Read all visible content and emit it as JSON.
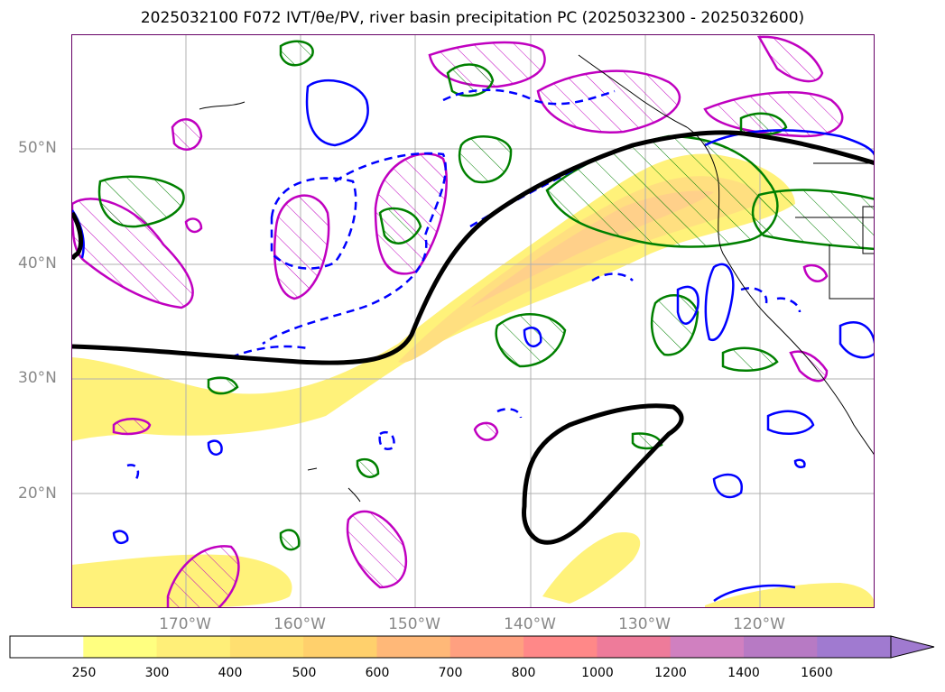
{
  "title_text": "2025032100 F072 IVT/θe/PV, river basin precipitation PC (2025032300 - 2025032600)",
  "map": {
    "lat_labels": [
      "50°N",
      "40°N",
      "30°N",
      "20°N"
    ],
    "lon_labels": [
      "170°W",
      "160°W",
      "150°W",
      "140°W",
      "130°W",
      "120°W"
    ],
    "layers": [
      {
        "name": "IVT shading",
        "color": "#ffe866"
      },
      {
        "name": "theta-e contour",
        "color": "#000000"
      },
      {
        "name": "PV positive contour",
        "color": "#0000ff"
      },
      {
        "name": "PV negative contour (dashed)",
        "color": "#0000ff"
      },
      {
        "name": "precipitation hatched contour",
        "color": "#c000c0"
      },
      {
        "name": "green contour",
        "color": "#008000"
      }
    ]
  },
  "colorbar": {
    "ticks": [
      "250",
      "300",
      "400",
      "500",
      "600",
      "700",
      "800",
      "1000",
      "1200",
      "1400",
      "1600"
    ],
    "colors": [
      "#ffffff",
      "#ffff80",
      "#ffef78",
      "#ffdf70",
      "#ffd06c",
      "#ffb878",
      "#ffa080",
      "#ff8888",
      "#ee7b9a",
      "#d080c0",
      "#b77ac4",
      "#a07ad0"
    ]
  }
}
